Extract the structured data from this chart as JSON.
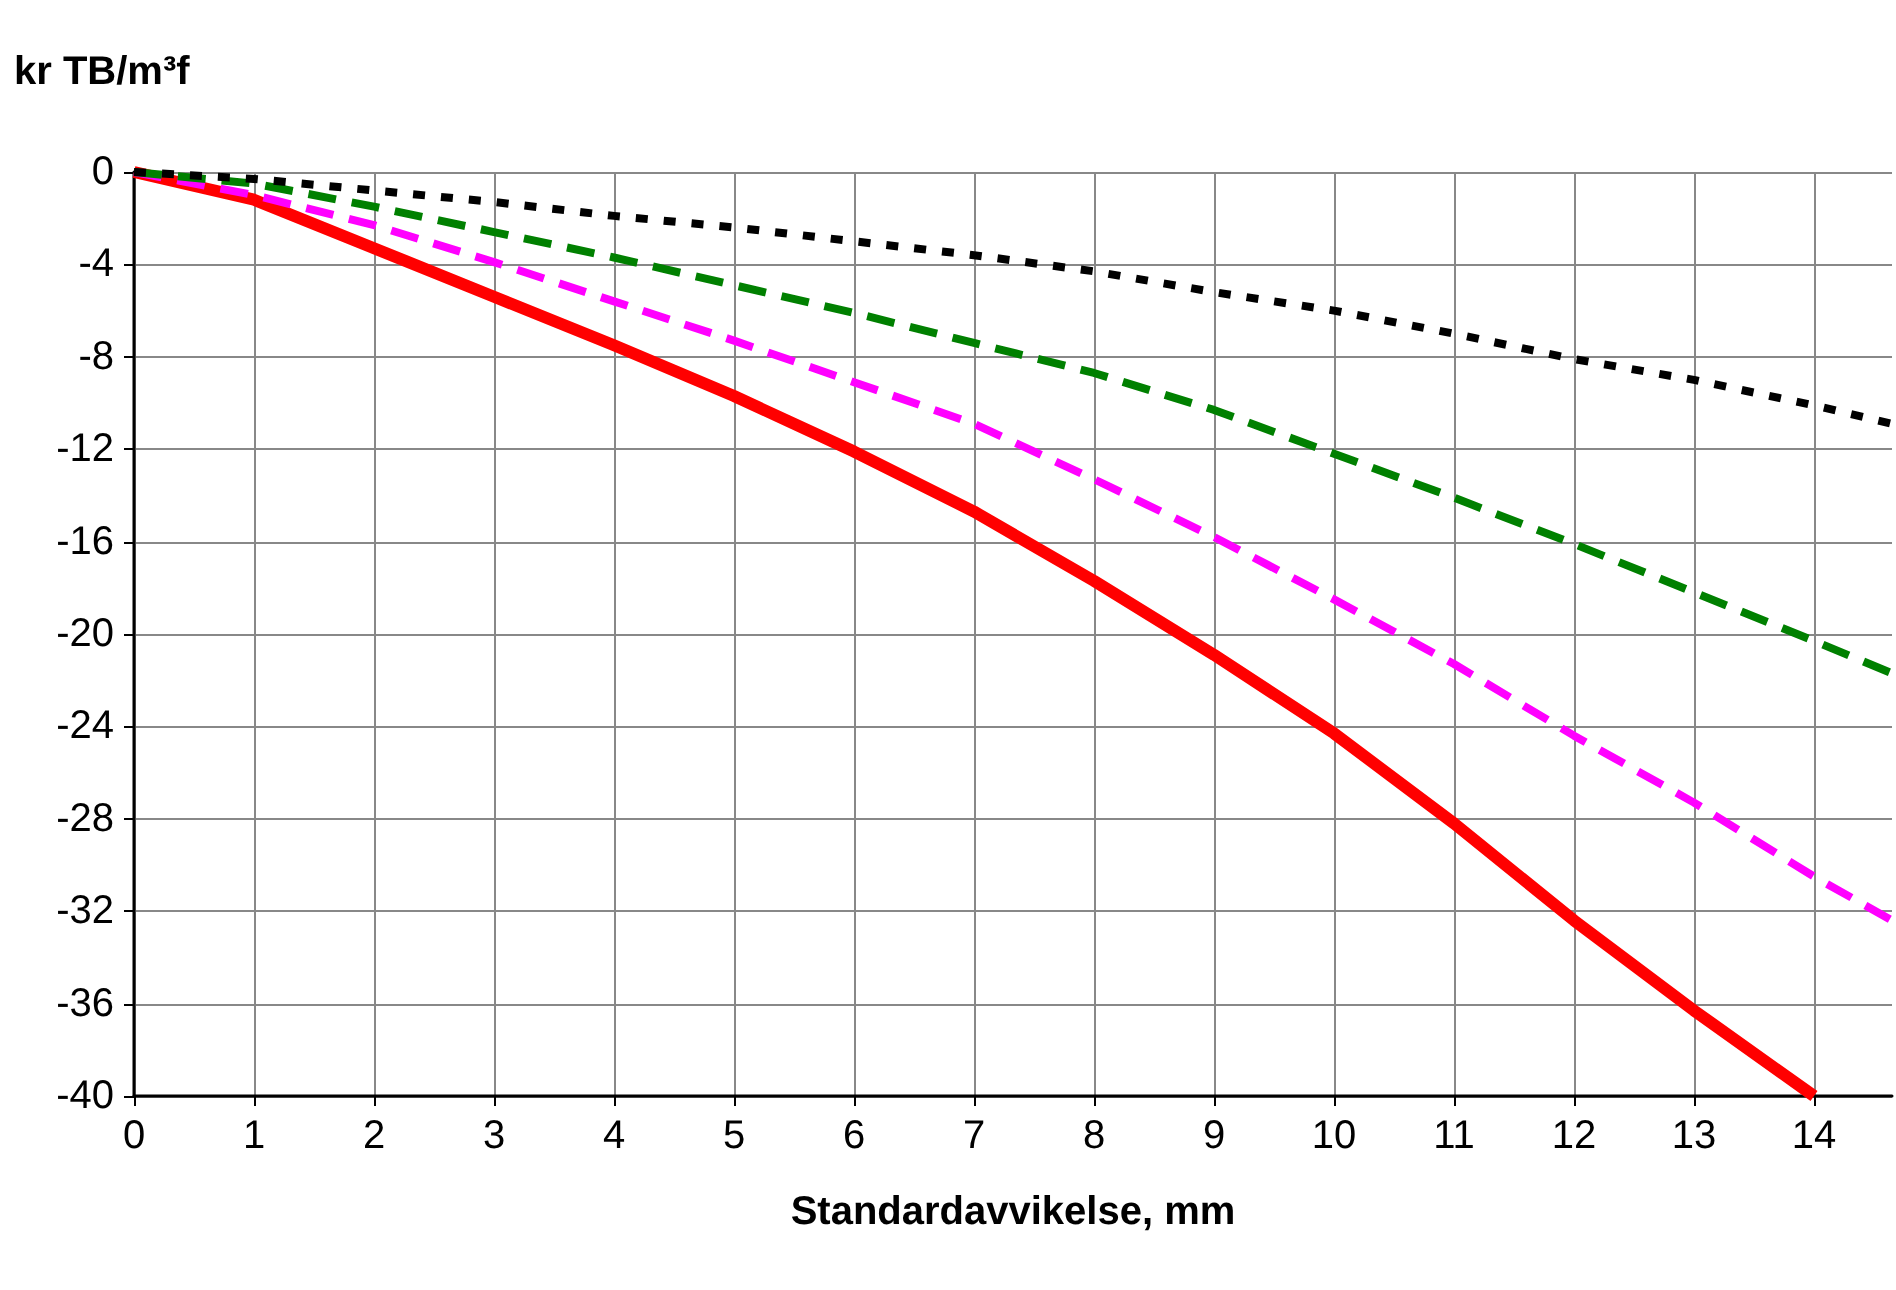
{
  "chart_data": {
    "type": "line",
    "ylabel": "kr TB/m³f",
    "xlabel": "Standardavvikelse, mm",
    "xlim": [
      0,
      14.65
    ],
    "xticks": [
      0,
      1,
      2,
      3,
      4,
      5,
      6,
      7,
      8,
      9,
      10,
      11,
      12,
      13,
      14
    ],
    "ylim": [
      -40,
      0
    ],
    "yticks": [
      -40,
      -36,
      -32,
      -28,
      -24,
      -20,
      -16,
      -12,
      -8,
      -4,
      0
    ],
    "grid": true,
    "marker": "none",
    "series": [
      {
        "color": "#000000",
        "line_style": "dotted",
        "x": [
          0,
          1,
          2,
          3,
          4,
          5,
          6,
          7,
          8,
          9,
          10,
          11,
          12,
          13,
          14,
          14.65
        ],
        "values": [
          0,
          -0.3,
          -0.8,
          -1.3,
          -1.9,
          -2.4,
          -3.0,
          -3.6,
          -4.3,
          -5.2,
          -6.0,
          -7.0,
          -8.1,
          -9.0,
          -10.1,
          -10.9
        ]
      },
      {
        "color": "#008000",
        "line_style": "dashed",
        "x": [
          0,
          1,
          2,
          3,
          4,
          5,
          6,
          7,
          8,
          9,
          10,
          11,
          12,
          13,
          14,
          14.65
        ],
        "values": [
          0,
          -0.5,
          -1.5,
          -2.6,
          -3.7,
          -4.9,
          -6.1,
          -7.4,
          -8.7,
          -10.3,
          -12.2,
          -14.1,
          -16.1,
          -18.2,
          -20.3,
          -21.7
        ]
      },
      {
        "color": "#ff00ff",
        "line_style": "dashed",
        "x": [
          0,
          1,
          2,
          3,
          4,
          5,
          6,
          7,
          8,
          9,
          10,
          11,
          12,
          13,
          14,
          14.65
        ],
        "values": [
          0,
          -1.0,
          -2.3,
          -3.9,
          -5.6,
          -7.3,
          -9.1,
          -10.9,
          -13.3,
          -15.8,
          -18.5,
          -21.3,
          -24.4,
          -27.3,
          -30.5,
          -32.4
        ]
      },
      {
        "color": "#ff0000",
        "line_style": "solid",
        "x": [
          0,
          1,
          2,
          3,
          4,
          5,
          6,
          7,
          8,
          9,
          10,
          11,
          12,
          13,
          14
        ],
        "values": [
          0,
          -1.2,
          -3.3,
          -5.4,
          -7.5,
          -9.7,
          -12.1,
          -14.7,
          -17.7,
          -20.9,
          -24.3,
          -28.2,
          -32.4,
          -36.3,
          -40
        ]
      }
    ]
  }
}
